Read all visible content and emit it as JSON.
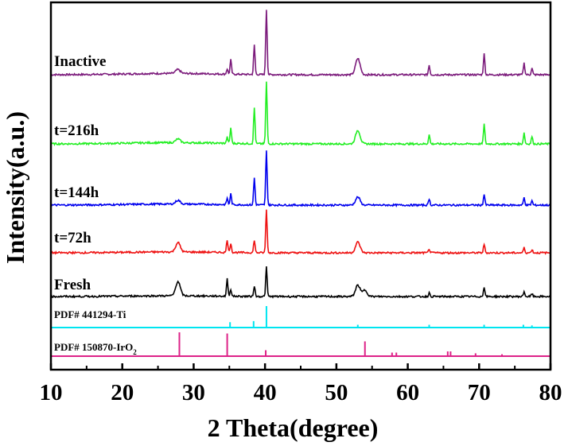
{
  "chart_data": {
    "type": "line",
    "xlabel": "2 Theta(degree)",
    "ylabel": "Intensity(a.u.)",
    "xlim": [
      10,
      80
    ],
    "x_ticks": [
      "10",
      "20",
      "30",
      "40",
      "50",
      "60",
      "70",
      "80"
    ],
    "grid": false,
    "series": [
      {
        "name": "Inactive",
        "color": "#7b1a7b",
        "peaks": [
          [
            27.8,
            0.06
          ],
          [
            34.7,
            0.08
          ],
          [
            35.2,
            0.22
          ],
          [
            38.5,
            0.45
          ],
          [
            40.2,
            1.0
          ],
          [
            53.0,
            0.25
          ],
          [
            63.0,
            0.15
          ],
          [
            70.7,
            0.32
          ],
          [
            76.3,
            0.18
          ],
          [
            77.4,
            0.1
          ]
        ]
      },
      {
        "name": "t=216h",
        "color": "#22ee22",
        "peaks": [
          [
            27.8,
            0.06
          ],
          [
            34.7,
            0.1
          ],
          [
            35.2,
            0.25
          ],
          [
            38.5,
            0.58
          ],
          [
            40.2,
            1.0
          ],
          [
            53.0,
            0.22
          ],
          [
            63.0,
            0.15
          ],
          [
            70.7,
            0.32
          ],
          [
            76.3,
            0.18
          ],
          [
            77.4,
            0.12
          ]
        ]
      },
      {
        "name": "t=144h",
        "color": "#0000ee",
        "peaks": [
          [
            27.8,
            0.07
          ],
          [
            34.7,
            0.12
          ],
          [
            35.2,
            0.2
          ],
          [
            38.5,
            0.5
          ],
          [
            40.2,
            1.0
          ],
          [
            53.0,
            0.15
          ],
          [
            63.0,
            0.12
          ],
          [
            70.7,
            0.2
          ],
          [
            76.3,
            0.14
          ],
          [
            77.4,
            0.08
          ]
        ]
      },
      {
        "name": "t=72h",
        "color": "#ee1111",
        "peaks": [
          [
            27.8,
            0.22
          ],
          [
            34.7,
            0.3
          ],
          [
            35.2,
            0.22
          ],
          [
            38.5,
            0.3
          ],
          [
            40.2,
            1.0
          ],
          [
            53.0,
            0.25
          ],
          [
            63.0,
            0.09
          ],
          [
            70.7,
            0.2
          ],
          [
            76.3,
            0.12
          ],
          [
            77.4,
            0.08
          ]
        ]
      },
      {
        "name": "Fresh",
        "color": "#000000",
        "peaks": [
          [
            27.8,
            0.4
          ],
          [
            34.7,
            0.48
          ],
          [
            35.2,
            0.2
          ],
          [
            38.5,
            0.3
          ],
          [
            40.2,
            0.82
          ],
          [
            53.0,
            0.32
          ],
          [
            54.0,
            0.18
          ],
          [
            63.0,
            0.1
          ],
          [
            70.7,
            0.28
          ],
          [
            76.3,
            0.14
          ],
          [
            77.4,
            0.08
          ]
        ]
      }
    ],
    "references": [
      {
        "name": "PDF# 441294-Ti",
        "color": "#00e5f0",
        "lines": [
          [
            35.1,
            0.25
          ],
          [
            38.4,
            0.3
          ],
          [
            40.2,
            1.0
          ],
          [
            53.0,
            0.13
          ],
          [
            63.0,
            0.13
          ],
          [
            70.7,
            0.13
          ],
          [
            76.2,
            0.13
          ],
          [
            77.4,
            0.1
          ]
        ]
      },
      {
        "name": "PDF# 150870-IrO",
        "name_subscript": "2",
        "color": "#dd2288",
        "lines": [
          [
            28.0,
            1.0
          ],
          [
            34.7,
            0.95
          ],
          [
            40.1,
            0.25
          ],
          [
            54.0,
            0.62
          ],
          [
            57.8,
            0.15
          ],
          [
            58.4,
            0.15
          ],
          [
            65.6,
            0.2
          ],
          [
            66.0,
            0.2
          ],
          [
            69.5,
            0.12
          ],
          [
            73.2,
            0.08
          ]
        ]
      }
    ]
  }
}
